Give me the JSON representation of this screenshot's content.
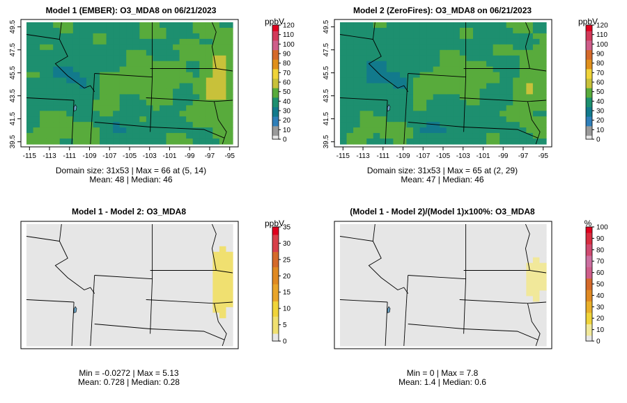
{
  "chart_data": [
    {
      "type": "heatmap",
      "title": "Model 1 (EMBER): O3_MDA8 on 06/21/2023",
      "colorbar_label": "ppbV",
      "colorbar_ticks": [
        "0",
        "10",
        "20",
        "30",
        "40",
        "50",
        "60",
        "70",
        "80",
        "90",
        "100",
        "110",
        "120"
      ],
      "colorbar_range": [
        0,
        120
      ],
      "x_ticks": [
        "-115",
        "-113",
        "-111",
        "-109",
        "-107",
        "-105",
        "-103",
        "-101",
        "-99",
        "-97",
        "-95"
      ],
      "y_ticks": [
        "39.5",
        "41.5",
        "43.5",
        "45.5",
        "47.5",
        "49.5"
      ],
      "xlim": [
        -115.3,
        -94.7
      ],
      "ylim": [
        39.3,
        49.9
      ],
      "stats_line1": "Domain size: 31x53 | Max = 66 at (5, 14)",
      "stats_line2": "Mean: 48 |  Median: 46",
      "field": "model1"
    },
    {
      "type": "heatmap",
      "title": "Model 2 (ZeroFires): O3_MDA8 on 06/21/2023",
      "colorbar_label": "ppbV",
      "colorbar_ticks": [
        "0",
        "10",
        "20",
        "30",
        "40",
        "50",
        "60",
        "70",
        "80",
        "90",
        "100",
        "110",
        "120"
      ],
      "colorbar_range": [
        0,
        120
      ],
      "x_ticks": [
        "-115",
        "-113",
        "-111",
        "-109",
        "-107",
        "-105",
        "-103",
        "-101",
        "-99",
        "-97",
        "-95"
      ],
      "y_ticks": [
        "39.5",
        "41.5",
        "43.5",
        "45.5",
        "47.5",
        "49.5"
      ],
      "xlim": [
        -115.3,
        -94.7
      ],
      "ylim": [
        39.3,
        49.9
      ],
      "stats_line1": "Domain size: 31x53 | Max = 65 at (2, 29)",
      "stats_line2": "Mean: 47 |  Median: 46",
      "field": "model2"
    },
    {
      "type": "heatmap",
      "title": "Model 1 - Model 2: O3_MDA8",
      "colorbar_label": "ppbV",
      "colorbar_ticks": [
        "0",
        "5",
        "10",
        "15",
        "20",
        "25",
        "30",
        "35"
      ],
      "colorbar_range": [
        0,
        35
      ],
      "stats_line1": "Min = -0.0272 | Max = 5.13",
      "stats_line2": "Mean: 0.728 |  Median: 0.28",
      "field": "diff"
    },
    {
      "type": "heatmap",
      "title": "(Model 1 - Model 2)/(Model 1)x100%: O3_MDA8",
      "colorbar_label": "%",
      "colorbar_ticks": [
        "0",
        "10",
        "20",
        "30",
        "40",
        "50",
        "60",
        "70",
        "80",
        "90",
        "100"
      ],
      "colorbar_range": [
        0,
        100
      ],
      "stats_line1": "Min = 0 | Max = 7.8",
      "stats_line2": "Mean: 1.4 |  Median: 0.6",
      "field": "pct"
    }
  ],
  "colors": {
    "ramp": [
      "#e6e6e6",
      "#9a9a9a",
      "#2f7fb9",
      "#127a8c",
      "#1d8f6f",
      "#58ab3c",
      "#c8c13a",
      "#f0d43a",
      "#e0901c",
      "#d56a2a",
      "#cf5e8a",
      "#d23a5a",
      "#e0001e"
    ],
    "diff_ramp": [
      "#e6e6e6",
      "#f0e070",
      "#f0d43a",
      "#e9a52a",
      "#e08a22",
      "#d56a2a",
      "#d8404a",
      "#e0001e"
    ],
    "pct_ramp": [
      "#e6e6e6",
      "#f1e89a",
      "#f0d43a",
      "#e9b02a",
      "#e08a22",
      "#d56a2a",
      "#cf5e8a",
      "#cc6fa0",
      "#d04a70",
      "#d82d40",
      "#e0001e"
    ]
  }
}
